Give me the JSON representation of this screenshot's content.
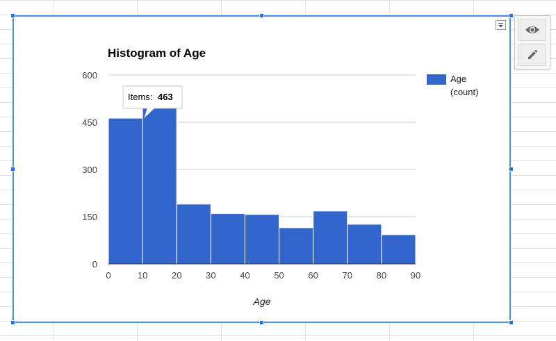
{
  "chart_data": {
    "type": "bar",
    "title": "Histogram of Age",
    "xlabel": "Age",
    "ylabel": "",
    "bin_edges": [
      0,
      10,
      20,
      30,
      40,
      50,
      60,
      70,
      80,
      90
    ],
    "x_ticks": [
      "0",
      "10",
      "20",
      "30",
      "40",
      "50",
      "60",
      "70",
      "80",
      "90"
    ],
    "y_ticks": [
      "0",
      "150",
      "300",
      "450",
      "600"
    ],
    "ylim": [
      0,
      600
    ],
    "series": [
      {
        "name": "Age (count)",
        "bins": [
          {
            "from": 0,
            "to": 10,
            "value": 463
          },
          {
            "from": 10,
            "to": 20,
            "value": 510
          },
          {
            "from": 20,
            "to": 30,
            "value": 190
          },
          {
            "from": 30,
            "to": 40,
            "value": 160
          },
          {
            "from": 40,
            "to": 50,
            "value": 157
          },
          {
            "from": 50,
            "to": 60,
            "value": 115
          },
          {
            "from": 60,
            "to": 70,
            "value": 168
          },
          {
            "from": 70,
            "to": 80,
            "value": 126
          },
          {
            "from": 80,
            "to": 90,
            "value": 93
          }
        ]
      }
    ],
    "legend": {
      "position": "right",
      "lines": [
        "Age",
        "(count)"
      ]
    },
    "grid": true,
    "colors": {
      "bar": "#3366cc",
      "grid": "#cccccc",
      "frame": "#4a90e2"
    },
    "tooltip": {
      "label": "Items:",
      "value": "463",
      "bin_index": 0
    }
  },
  "toolbar": {
    "view_icon": "eye-icon",
    "edit_icon": "pencil-icon",
    "menu_icon": "chevron-down-icon"
  }
}
